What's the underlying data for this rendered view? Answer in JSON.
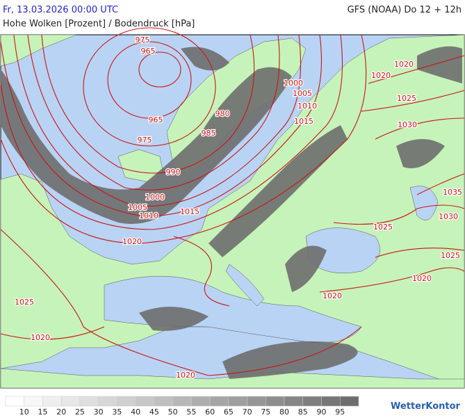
{
  "header": {
    "valid_time": "Fr, 13.03.2026 00:00 UTC",
    "model_run": "GFS (NOAA) Do 12 + 12h",
    "title": "Hohe Wolken [Prozent] / Bodendruck [hPa]"
  },
  "isobar_labels": [
    975,
    965,
    965,
    975,
    980,
    985,
    990,
    1000,
    1005,
    1010,
    1015,
    1000,
    1005,
    1010,
    1015,
    1020,
    1020,
    1020,
    1025,
    1030,
    1035,
    1030,
    1025,
    1025,
    1020,
    1020,
    1025,
    1020,
    1020
  ],
  "legend": {
    "labels": [
      10,
      15,
      20,
      25,
      30,
      35,
      40,
      45,
      50,
      55,
      60,
      65,
      70,
      75,
      80,
      85,
      90,
      95
    ]
  },
  "logo": "WetterKontor"
}
